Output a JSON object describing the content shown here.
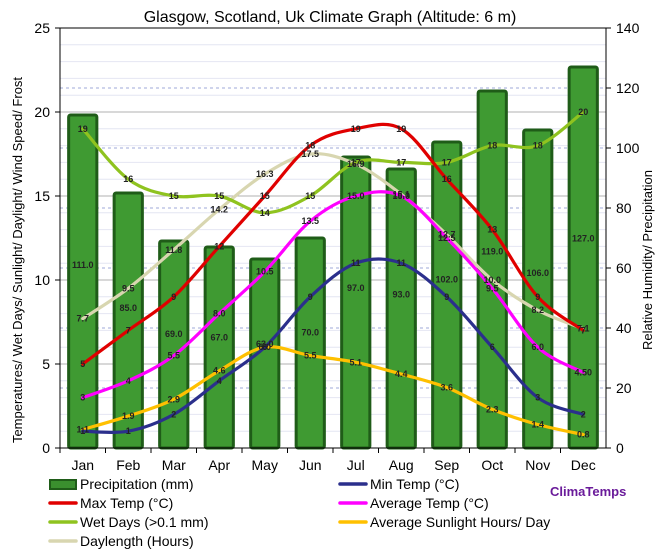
{
  "chart_data": {
    "type": "bar",
    "title": "Glasgow, Scotland, Uk Climate Graph (Altitude: 6 m)",
    "ylabel_left": "Temperatures/ Wet Days/ Sunlight/ Daylight/ Wind Speed/ Frost",
    "ylabel_right": "Relative Humidity/ Precipitation",
    "ylim_left": [
      0,
      25
    ],
    "ylim_right": [
      0,
      140
    ],
    "left_ticks": [
      "0",
      "5",
      "10",
      "15",
      "20",
      "25"
    ],
    "right_ticks": [
      "0",
      "20",
      "40",
      "60",
      "80",
      "100",
      "120",
      "140"
    ],
    "categories": [
      "Jan",
      "Feb",
      "Mar",
      "Apr",
      "May",
      "Jun",
      "Jul",
      "Aug",
      "Sep",
      "Oct",
      "Nov",
      "Dec"
    ],
    "grid": true,
    "brand": "ClimaTemps",
    "series": [
      {
        "name": "Precipitation (mm)",
        "type": "bar",
        "axis": "right",
        "color": "#3a8f2e",
        "values": [
          111.0,
          85.0,
          69.0,
          67.0,
          63.0,
          70.0,
          97.0,
          93.0,
          102.0,
          119.0,
          106.0,
          127.0
        ]
      },
      {
        "name": "Min Temp (°C)",
        "type": "line",
        "axis": "left",
        "color": "#2b2f8c",
        "values": [
          1,
          1,
          2,
          4,
          6,
          9,
          11,
          11,
          9,
          6,
          3,
          2
        ]
      },
      {
        "name": "Max Temp (°C)",
        "type": "line",
        "axis": "left",
        "color": "#e00000",
        "values": [
          5,
          7,
          9,
          12,
          15,
          18,
          19,
          19,
          16,
          13,
          9,
          7
        ]
      },
      {
        "name": "Average Temp (°C)",
        "type": "line",
        "axis": "left",
        "color": "#ff00ff",
        "values": [
          3,
          4,
          5.5,
          8.0,
          10.5,
          13.5,
          15.0,
          15.0,
          12.5,
          9.5,
          6.0,
          4.5
        ]
      },
      {
        "name": "Wet Days (>0.1 mm)",
        "type": "line",
        "axis": "left",
        "color": "#8fc31f",
        "values": [
          19,
          16,
          15,
          15,
          14,
          15,
          17,
          17,
          17,
          18,
          18,
          20
        ]
      },
      {
        "name": "Average Sunlight Hours/ Day",
        "type": "line",
        "axis": "left",
        "color": "#ffc000",
        "values": [
          1.1,
          1.9,
          2.9,
          4.6,
          6.0,
          5.5,
          5.1,
          4.4,
          3.6,
          2.3,
          1.4,
          0.8
        ]
      },
      {
        "name": "Daylength (Hours)",
        "type": "line",
        "axis": "left",
        "color": "#d8d6b0",
        "values": [
          7.7,
          9.5,
          11.8,
          14.2,
          16.3,
          17.5,
          16.9,
          15.1,
          12.7,
          10.0,
          8.2,
          7.1
        ]
      }
    ],
    "labels": {
      "precip": [
        "111.0",
        "85.0",
        "69.0",
        "67.0",
        "63.0",
        "70.0",
        "97.0",
        "93.0",
        "102.0",
        "119.0",
        "106.0",
        "127.0"
      ],
      "min": [
        "1",
        "1",
        "2",
        "4",
        "6",
        "9",
        "11",
        "11",
        "9",
        "6",
        "3",
        "2"
      ],
      "max": [
        "5",
        "7",
        "9",
        "12",
        "15",
        "18",
        "19",
        "19",
        "16",
        "13",
        "9",
        "7"
      ],
      "avg": [
        "3",
        "4",
        "5.5",
        "8.0",
        "10.5",
        "13.5",
        "15.0",
        "15.0",
        "12.5",
        "9.5",
        "6.0",
        "4.50"
      ],
      "wet": [
        "19",
        "16",
        "15",
        "15",
        "14",
        "15",
        "17",
        "17",
        "17",
        "18",
        "18",
        "20"
      ],
      "sun": [
        "1.1",
        "1.9",
        "2.9",
        "4.6",
        "6.0",
        "5.5",
        "5.1",
        "4.4",
        "3.6",
        "2.3",
        "1.4",
        "0.8"
      ],
      "day": [
        "7.7",
        "9.5",
        "11.8",
        "14.2",
        "16.3",
        "17.5",
        "16.9",
        "15.1",
        "12.7",
        "10.0",
        "8.2",
        "7.1"
      ]
    },
    "legend": [
      {
        "label": "Precipitation (mm)",
        "kind": "bar",
        "color": "#3a8f2e"
      },
      {
        "label": "Min Temp (°C)",
        "kind": "line",
        "color": "#2b2f8c"
      },
      {
        "label": "Max Temp (°C)",
        "kind": "line",
        "color": "#e00000"
      },
      {
        "label": "Average Temp (°C)",
        "kind": "line",
        "color": "#ff00ff"
      },
      {
        "label": "Wet Days (>0.1 mm)",
        "kind": "line",
        "color": "#8fc31f"
      },
      {
        "label": "Average Sunlight Hours/ Day",
        "kind": "line",
        "color": "#ffc000"
      },
      {
        "label": "Daylength (Hours)",
        "kind": "line",
        "color": "#d8d6b0"
      }
    ]
  }
}
